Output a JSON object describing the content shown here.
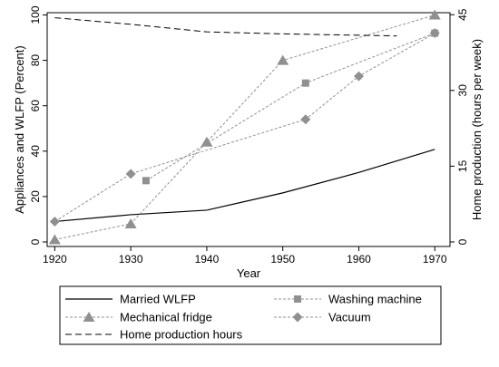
{
  "chart_data": {
    "type": "line",
    "xlabel": "Year",
    "ylabel": "Appliances and WLFP (Percent)",
    "ylabel_right": "Home production (hours per week)",
    "xlim": [
      1919,
      1972
    ],
    "ylim": [
      -2,
      101
    ],
    "ylim_right": [
      -0.9,
      45.4
    ],
    "x_ticks": [
      1920,
      1930,
      1940,
      1950,
      1960,
      1970
    ],
    "y_ticks": [
      0,
      20,
      40,
      60,
      80,
      100
    ],
    "y_ticks_right": [
      0,
      15,
      30,
      45
    ],
    "x_tick_labels": [
      "1920",
      "1930",
      "1940",
      "1950",
      "1960",
      "1970"
    ],
    "y_tick_labels": [
      "0",
      "20",
      "40",
      "60",
      "80",
      "100"
    ],
    "y_tick_labels_right": [
      "0",
      "15",
      "30",
      "45"
    ],
    "grid": false,
    "legend_position": "bottom",
    "series": [
      {
        "name": "Married WLFP",
        "axis": "left",
        "style": "solid",
        "marker": "none",
        "color": "#000000",
        "x": [
          1920,
          1930,
          1940,
          1950,
          1960,
          1970
        ],
        "y": [
          9,
          12,
          14,
          21.6,
          30.6,
          40.8
        ]
      },
      {
        "name": "Washing machine",
        "axis": "left",
        "style": "dashed",
        "marker": "square",
        "color": "#909090",
        "x": [
          1932,
          1953,
          1970
        ],
        "y": [
          27,
          70,
          92
        ]
      },
      {
        "name": "Mechanical fridge",
        "axis": "left",
        "style": "dashed",
        "marker": "triangle",
        "color": "#909090",
        "x": [
          1920,
          1930,
          1940,
          1950,
          1970
        ],
        "y": [
          1,
          8,
          44,
          80,
          100
        ]
      },
      {
        "name": "Vacuum",
        "axis": "left",
        "style": "dashed",
        "marker": "diamond",
        "color": "#909090",
        "x": [
          1920,
          1930,
          1953,
          1960,
          1970
        ],
        "y": [
          9,
          30,
          54,
          73,
          92
        ]
      },
      {
        "name": "Home production hours",
        "axis": "right",
        "style": "longdash",
        "marker": "none",
        "color": "#000000",
        "x": [
          1920,
          1930,
          1940,
          1950,
          1965
        ],
        "y": [
          44.4,
          43.1,
          41.6,
          41.2,
          40.8
        ]
      }
    ]
  }
}
